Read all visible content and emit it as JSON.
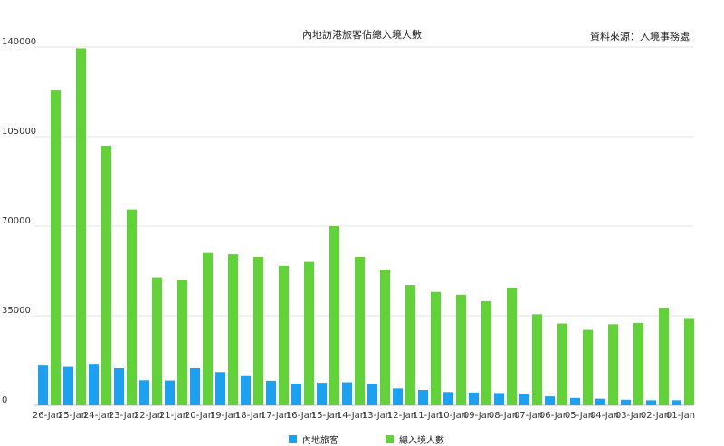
{
  "chart_data": {
    "type": "bar",
    "title": "內地訪港旅客佔總入境人數",
    "source": "資料來源：入境事務處",
    "categories": [
      "26-Jan",
      "25-Jan",
      "24-Jan",
      "23-Jan",
      "22-Jan",
      "21-Jan",
      "20-Jan",
      "19-Jan",
      "18-Jan",
      "17-Jan",
      "16-Jan",
      "15-Jan",
      "14-Jan",
      "13-Jan",
      "12-Jan",
      "11-Jan",
      "10-Jan",
      "09-Jan",
      "08-Jan",
      "07-Jan",
      "06-Jan",
      "05-Jan",
      "04-Jan",
      "03-Jan",
      "02-Jan",
      "01-Jan"
    ],
    "series": [
      {
        "name": "內地旅客",
        "color": "#1ea0f0",
        "values": [
          15500,
          15000,
          16200,
          14500,
          9800,
          9700,
          14500,
          13000,
          11400,
          9600,
          8500,
          8800,
          9000,
          8400,
          6600,
          6000,
          5200,
          5000,
          4800,
          4600,
          3500,
          2900,
          2600,
          2200,
          2000,
          2000
        ]
      },
      {
        "name": "總入境人數",
        "color": "#63d23a",
        "values": [
          123000,
          139500,
          101500,
          76500,
          50000,
          49000,
          59500,
          59000,
          58000,
          54500,
          56000,
          70000,
          58000,
          53000,
          47000,
          44300,
          43200,
          40700,
          46000,
          35600,
          32000,
          29500,
          31700,
          32200,
          38000,
          33800
        ]
      }
    ],
    "y_ticks": [
      "0",
      "35000",
      "70000",
      "105000",
      "140000"
    ],
    "ylim": [
      0,
      140000
    ],
    "legend_position": "bottom",
    "grid": true
  }
}
